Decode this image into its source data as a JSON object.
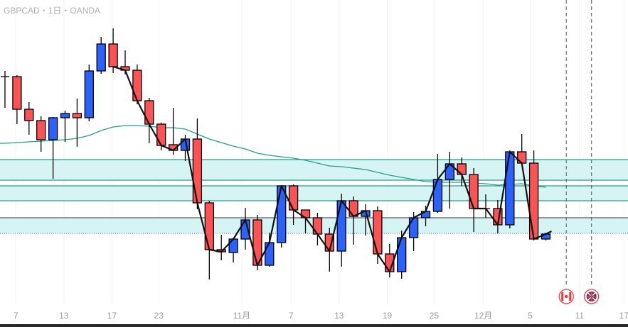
{
  "header": {
    "title": "GBPCAD・1日・OANDA"
  },
  "colors": {
    "up": "#2B62FF",
    "down": "#FF5254",
    "ma": "#22A08A",
    "zone_fill": "#D7F4F5",
    "zone_line": "#22A08A",
    "close_line": "#111111",
    "support_line": "#333333",
    "dotted_line": "#3A5BD9"
  },
  "chart_data": {
    "type": "candlestick",
    "symbol": "GBPCAD",
    "interval": "1日",
    "source": "OANDA",
    "ylim": [
      1.704,
      1.75
    ],
    "ohlc": [
      [
        1.7392,
        1.74,
        1.7348,
        1.7392
      ],
      [
        1.7392,
        1.7394,
        1.7325,
        1.7346
      ],
      [
        1.7346,
        1.7356,
        1.731,
        1.733
      ],
      [
        1.733,
        1.7336,
        1.7286,
        1.7303
      ],
      [
        1.7303,
        1.7335,
        1.7248,
        1.7334
      ],
      [
        1.7334,
        1.7344,
        1.73,
        1.734
      ],
      [
        1.734,
        1.7361,
        1.7293,
        1.7334
      ],
      [
        1.7334,
        1.7409,
        1.7329,
        1.74
      ],
      [
        1.74,
        1.7448,
        1.7396,
        1.7438
      ],
      [
        1.7438,
        1.746,
        1.7397,
        1.7406
      ],
      [
        1.7406,
        1.7429,
        1.7395,
        1.7401
      ],
      [
        1.7401,
        1.7409,
        1.7353,
        1.7358
      ],
      [
        1.7358,
        1.7362,
        1.7298,
        1.7325
      ],
      [
        1.7325,
        1.7327,
        1.7288,
        1.7295
      ],
      [
        1.7296,
        1.7348,
        1.7282,
        1.7288
      ],
      [
        1.7288,
        1.731,
        1.7273,
        1.7304
      ],
      [
        1.7304,
        1.7333,
        1.7205,
        1.7214
      ],
      [
        1.7214,
        1.7217,
        1.7106,
        1.7148
      ],
      [
        1.7148,
        1.7169,
        1.7133,
        1.7145
      ],
      [
        1.7144,
        1.7165,
        1.713,
        1.7163
      ],
      [
        1.7163,
        1.7207,
        1.7148,
        1.719
      ],
      [
        1.719,
        1.7197,
        1.7119,
        1.7126
      ],
      [
        1.7126,
        1.7172,
        1.7124,
        1.7158
      ],
      [
        1.7158,
        1.7239,
        1.7151,
        1.7238
      ],
      [
        1.7238,
        1.724,
        1.7183,
        1.7204
      ],
      [
        1.7204,
        1.7204,
        1.7171,
        1.7193
      ],
      [
        1.7193,
        1.72,
        1.7154,
        1.717
      ],
      [
        1.717,
        1.7179,
        1.7117,
        1.7146
      ],
      [
        1.7146,
        1.7227,
        1.7124,
        1.7217
      ],
      [
        1.7217,
        1.7223,
        1.7155,
        1.7195
      ],
      [
        1.7195,
        1.7212,
        1.7168,
        1.7203
      ],
      [
        1.7203,
        1.7209,
        1.7128,
        1.7142
      ],
      [
        1.7142,
        1.7156,
        1.7109,
        1.7117
      ],
      [
        1.7117,
        1.7175,
        1.7107,
        1.7165
      ],
      [
        1.7165,
        1.7201,
        1.7146,
        1.7193
      ],
      [
        1.7193,
        1.721,
        1.7181,
        1.7202
      ],
      [
        1.7202,
        1.7283,
        1.72,
        1.7247
      ],
      [
        1.7247,
        1.7286,
        1.7206,
        1.7269
      ],
      [
        1.7269,
        1.7278,
        1.7238,
        1.7254
      ],
      [
        1.7254,
        1.7263,
        1.7173,
        1.7206
      ],
      [
        1.7206,
        1.7226,
        1.7193,
        1.7206
      ],
      [
        1.7206,
        1.7218,
        1.7171,
        1.7183
      ],
      [
        1.7183,
        1.7288,
        1.7178,
        1.7286
      ],
      [
        1.7286,
        1.7311,
        1.7268,
        1.727
      ],
      [
        1.727,
        1.7288,
        1.7161,
        1.7163
      ],
      [
        1.7163,
        1.7172,
        1.7161,
        1.717
      ]
    ],
    "moving_average": [
      1.7298,
      1.7299,
      1.73,
      1.7301,
      1.7302,
      1.7303,
      1.7305,
      1.7309,
      1.7316,
      1.7321,
      1.7323,
      1.7323,
      1.7322,
      1.732,
      1.732,
      1.7318,
      1.7311,
      1.7304,
      1.7299,
      1.7294,
      1.729,
      1.7284,
      1.7281,
      1.7279,
      1.7277,
      1.7274,
      1.727,
      1.7266,
      1.7265,
      1.7263,
      1.7261,
      1.7257,
      1.7253,
      1.725,
      1.7247,
      1.7244,
      1.7243,
      1.7243,
      1.7243,
      1.7242,
      1.7241,
      1.7239,
      1.724,
      1.7241,
      1.7238,
      1.7236
    ],
    "close_line_start_index": 9,
    "zones": [
      [
        1.7246,
        1.7275
      ],
      [
        1.7217,
        1.7238
      ],
      [
        1.7171,
        1.7193
      ]
    ],
    "support_line": 1.7193,
    "dotted_line": 1.7171,
    "x_ticks": [
      {
        "pos": 0.9,
        "label": "7"
      },
      {
        "pos": 4.9,
        "label": "13"
      },
      {
        "pos": 8.9,
        "label": "17"
      },
      {
        "pos": 12.8,
        "label": "23"
      },
      {
        "pos": 19.7,
        "label": "11月"
      },
      {
        "pos": 23.8,
        "label": "7"
      },
      {
        "pos": 27.8,
        "label": "13"
      },
      {
        "pos": 31.8,
        "label": "19"
      },
      {
        "pos": 35.7,
        "label": "25"
      },
      {
        "pos": 39.8,
        "label": "12月"
      },
      {
        "pos": 43.7,
        "label": "5"
      },
      {
        "pos": 47.8,
        "label": "11"
      },
      {
        "pos": 51.5,
        "label": "17"
      }
    ],
    "events": [
      {
        "pos": 46.7,
        "country": "CA",
        "icon": "canada-flag-icon"
      },
      {
        "pos": 48.8,
        "country": "GB",
        "icon": "uk-flag-icon"
      }
    ]
  }
}
